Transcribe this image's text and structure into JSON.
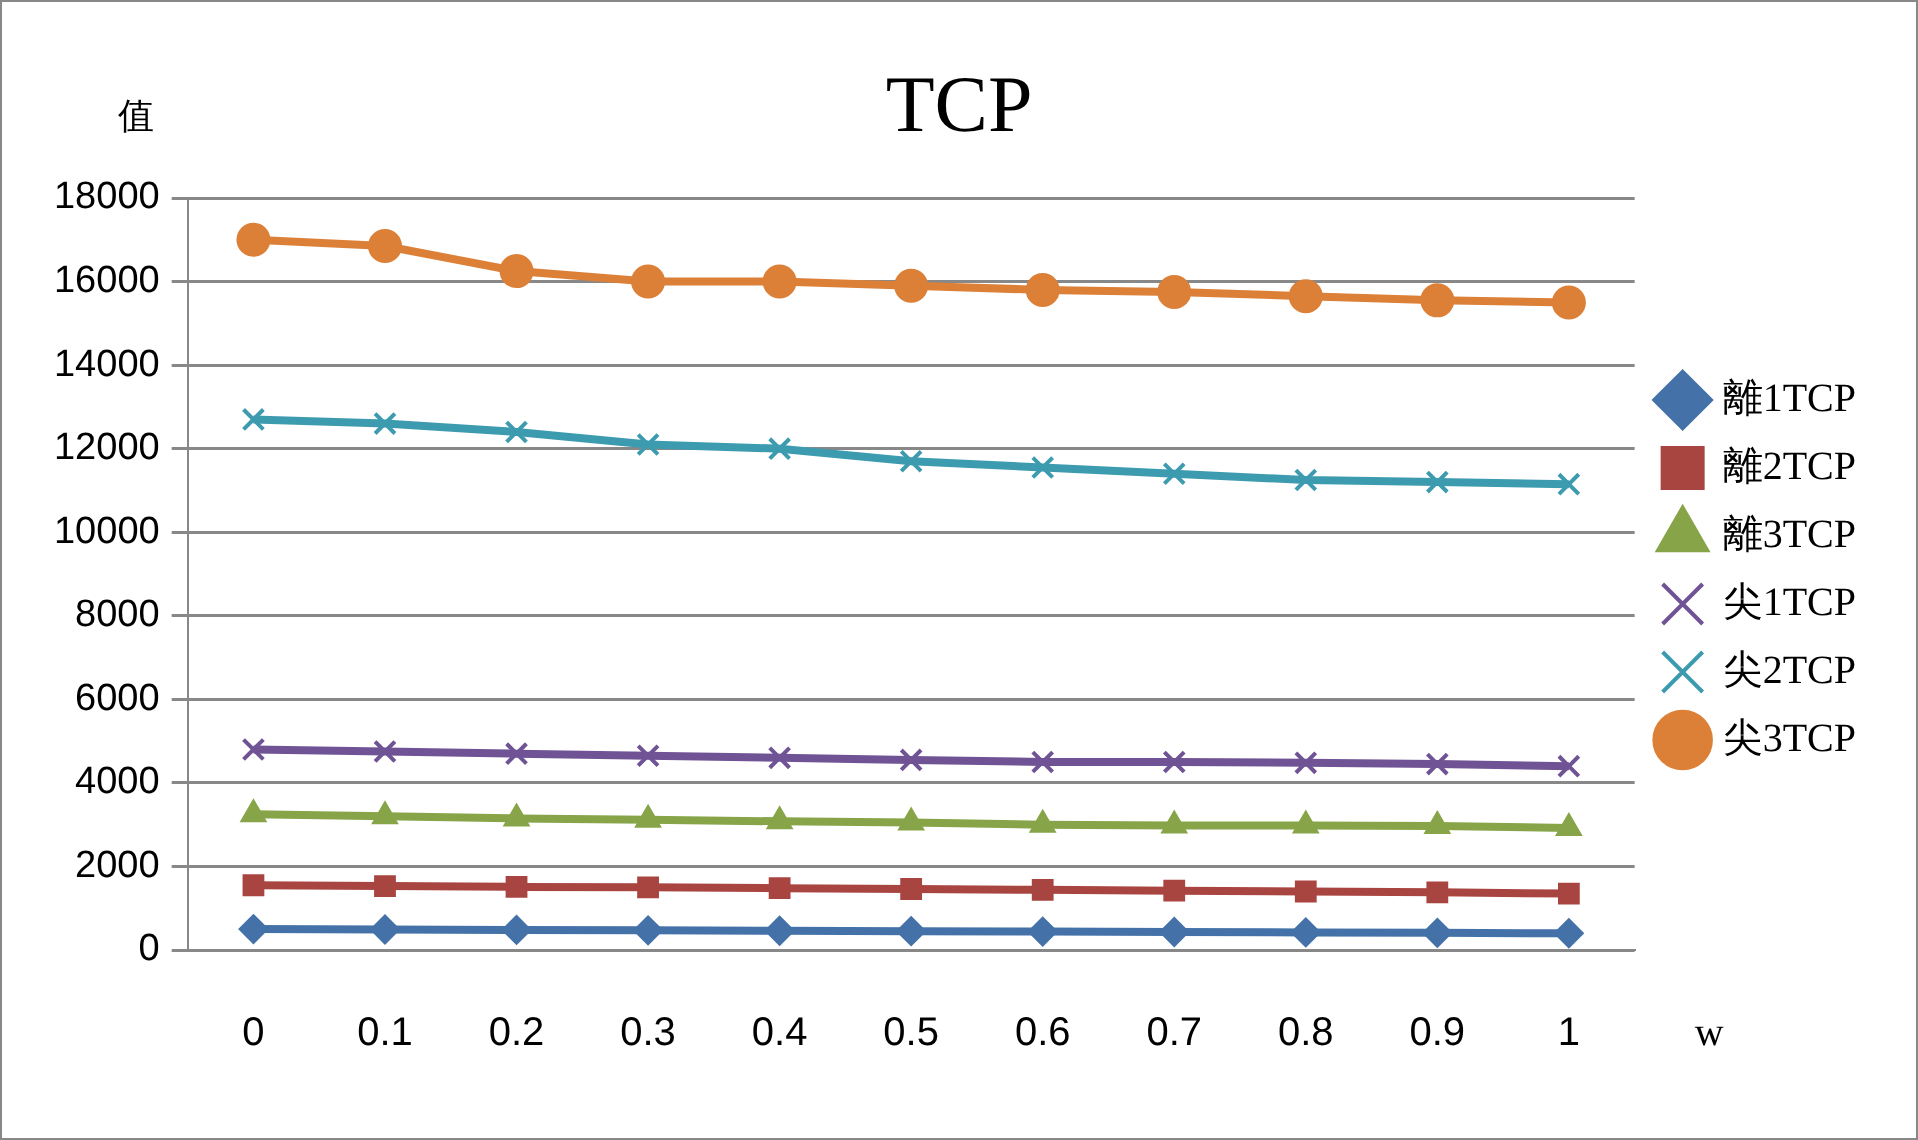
{
  "chart_data": {
    "type": "line",
    "title": "TCP",
    "ylabel": "值",
    "xlabel": "w",
    "categories": [
      "0",
      "0.1",
      "0.2",
      "0.3",
      "0.4",
      "0.5",
      "0.6",
      "0.7",
      "0.8",
      "0.9",
      "1"
    ],
    "series": [
      {
        "name": "離1TCP",
        "color": "#4472a8",
        "marker": "diamond",
        "values": [
          500,
          490,
          480,
          470,
          460,
          450,
          440,
          430,
          420,
          410,
          400
        ]
      },
      {
        "name": "離2TCP",
        "color": "#a94541",
        "marker": "square",
        "values": [
          1550,
          1530,
          1510,
          1500,
          1480,
          1460,
          1440,
          1420,
          1400,
          1380,
          1350
        ]
      },
      {
        "name": "離3TCP",
        "color": "#87a548",
        "marker": "triangle",
        "values": [
          3250,
          3200,
          3150,
          3120,
          3080,
          3050,
          3000,
          2980,
          2980,
          2970,
          2920
        ]
      },
      {
        "name": "尖1TCP",
        "color": "#6f5395",
        "marker": "cross",
        "values": [
          4800,
          4750,
          4700,
          4650,
          4600,
          4550,
          4500,
          4500,
          4480,
          4450,
          4400
        ]
      },
      {
        "name": "尖2TCP",
        "color": "#3d9bb0",
        "marker": "cross",
        "values": [
          12700,
          12600,
          12400,
          12100,
          12000,
          11700,
          11550,
          11400,
          11250,
          11200,
          11150
        ]
      },
      {
        "name": "尖3TCP",
        "color": "#dc8038",
        "marker": "circle",
        "values": [
          17000,
          16850,
          16250,
          16000,
          16000,
          15900,
          15800,
          15750,
          15650,
          15550,
          15500
        ]
      }
    ],
    "ylim": [
      0,
      18000
    ],
    "yticks": [
      0,
      2000,
      4000,
      6000,
      8000,
      10000,
      12000,
      14000,
      16000,
      18000
    ],
    "grid": "y",
    "legend": "right"
  }
}
